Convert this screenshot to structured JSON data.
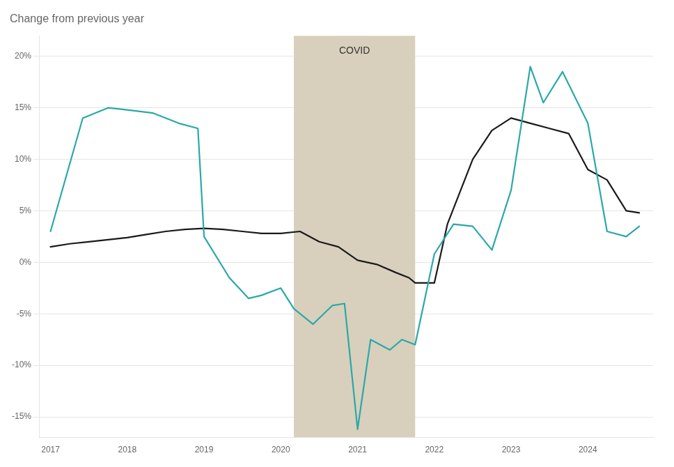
{
  "chart_data": {
    "type": "line",
    "title": "Change from previous year",
    "xlim": [
      2016.85,
      2024.85
    ],
    "xticks": [
      2017,
      2018,
      2019,
      2020,
      2021,
      2022,
      2023,
      2024
    ],
    "ylim": [
      -17,
      22
    ],
    "yticks": [
      {
        "value": -15,
        "label": "-15%"
      },
      {
        "value": -10,
        "label": "-10%"
      },
      {
        "value": -5,
        "label": "-5%"
      },
      {
        "value": 0,
        "label": "0%"
      },
      {
        "value": 5,
        "label": "5%"
      },
      {
        "value": 10,
        "label": "10%"
      },
      {
        "value": 15,
        "label": "15%"
      },
      {
        "value": 20,
        "label": "20%"
      }
    ],
    "grid": true,
    "annotations": [
      {
        "text": "COVID",
        "x": 2020.96,
        "y": 21.0,
        "span": [
          2020.17,
          2021.75
        ],
        "color": "#d8d0bc"
      }
    ],
    "series": [
      {
        "color": "#2aa8a8",
        "x": [
          2017.0,
          2017.42,
          2017.75,
          2018.0,
          2018.33,
          2018.67,
          2018.92,
          2019.0,
          2019.33,
          2019.58,
          2019.75,
          2020.0,
          2020.17,
          2020.42,
          2020.67,
          2020.83,
          2021.0,
          2021.17,
          2021.42,
          2021.58,
          2021.75,
          2022.0,
          2022.25,
          2022.5,
          2022.75,
          2023.0,
          2023.25,
          2023.42,
          2023.67,
          2024.0,
          2024.25,
          2024.5,
          2024.67
        ],
        "values": [
          3.0,
          14.0,
          15.0,
          14.8,
          14.5,
          13.5,
          13.0,
          2.5,
          -1.5,
          -3.5,
          -3.2,
          -2.5,
          -4.5,
          -6.0,
          -4.2,
          -4.0,
          -16.2,
          -7.5,
          -8.5,
          -7.5,
          -8.0,
          0.8,
          3.7,
          3.5,
          1.2,
          7.0,
          19.0,
          15.5,
          18.5,
          13.5,
          3.0,
          2.5,
          3.5
        ]
      },
      {
        "color": "#1a1a1a",
        "x": [
          2017.0,
          2017.25,
          2017.5,
          2017.75,
          2018.0,
          2018.25,
          2018.5,
          2018.75,
          2019.0,
          2019.25,
          2019.5,
          2019.75,
          2020.0,
          2020.25,
          2020.5,
          2020.75,
          2021.0,
          2021.25,
          2021.5,
          2021.67,
          2021.75,
          2022.0,
          2022.17,
          2022.5,
          2022.75,
          2023.0,
          2023.25,
          2023.5,
          2023.75,
          2024.0,
          2024.25,
          2024.5,
          2024.67
        ],
        "values": [
          1.5,
          1.8,
          2.0,
          2.2,
          2.4,
          2.7,
          3.0,
          3.2,
          3.3,
          3.2,
          3.0,
          2.8,
          2.8,
          3.0,
          2.0,
          1.5,
          0.2,
          -0.2,
          -1.0,
          -1.5,
          -2.0,
          -2.0,
          3.7,
          10.0,
          12.8,
          14.0,
          13.5,
          13.0,
          12.5,
          9.0,
          8.0,
          5.0,
          4.8
        ]
      }
    ]
  }
}
